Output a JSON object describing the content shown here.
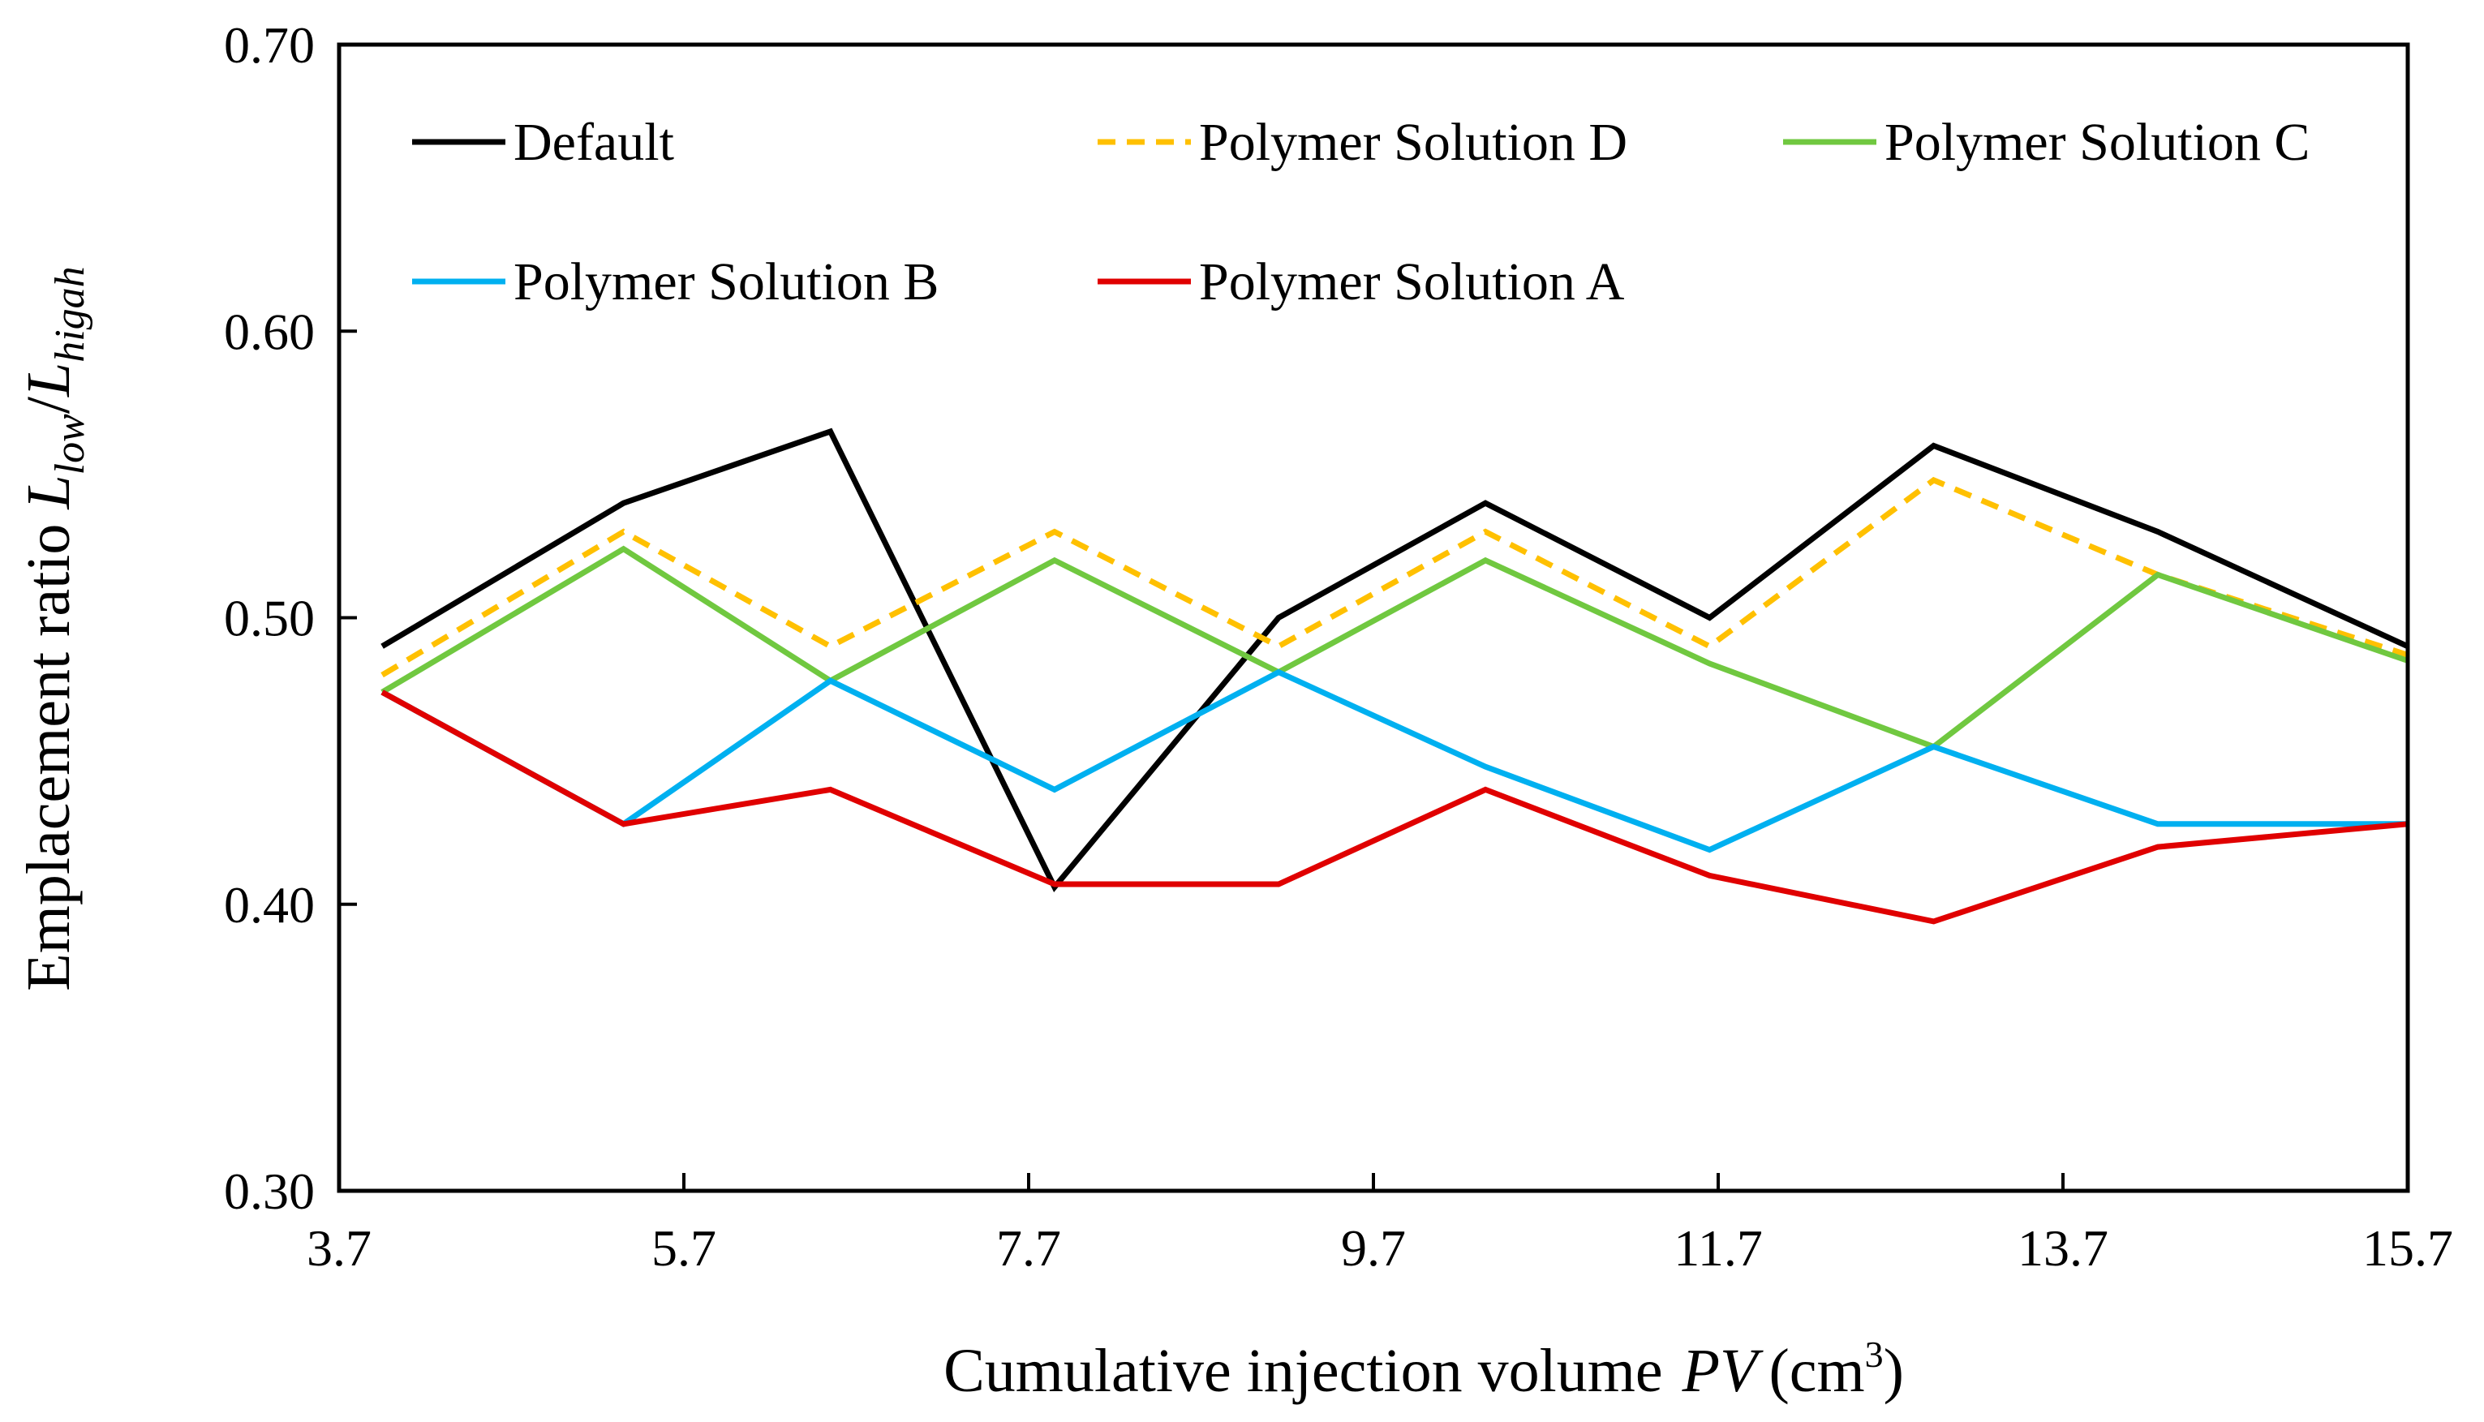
{
  "chart_data": {
    "type": "line",
    "title": "",
    "xlabel": {
      "prefix": "Cumulative injection volume",
      "variable": "PV",
      "unit_open": "(cm",
      "unit_sup": "3",
      "unit_close": ")"
    },
    "ylabel": {
      "prefix": "Emplacement ratio",
      "l1": "L",
      "l1_sub": "low",
      "slash": "/",
      "l2": "L",
      "l2_sub": "higah"
    },
    "xlim": [
      3.7,
      15.7
    ],
    "ylim": [
      0.3,
      0.7
    ],
    "x_ticks": [
      "3.7",
      "5.7",
      "7.7",
      "9.7",
      "11.7",
      "13.7",
      "15.7"
    ],
    "y_ticks": [
      "0.30",
      "0.40",
      "0.50",
      "0.60",
      "0.70"
    ],
    "x": [
      3.95,
      5.35,
      6.55,
      7.85,
      9.15,
      10.35,
      11.65,
      12.95,
      14.25,
      15.7
    ],
    "series": [
      {
        "name": "Default",
        "color": "#000000",
        "dash": "solid",
        "values": [
          0.49,
          0.54,
          0.565,
          0.406,
          0.5,
          0.54,
          0.5,
          0.56,
          0.53,
          0.49
        ]
      },
      {
        "name": "Polymer Solution D",
        "color": "#FFC000",
        "dash": "dashed",
        "values": [
          0.48,
          0.53,
          0.49,
          0.53,
          0.49,
          0.53,
          0.49,
          0.548,
          0.515,
          0.487
        ]
      },
      {
        "name": "Polymer Solution C",
        "color": "#70C840",
        "dash": "solid",
        "values": [
          0.474,
          0.524,
          0.478,
          0.52,
          0.481,
          0.52,
          0.484,
          0.455,
          0.515,
          0.485
        ]
      },
      {
        "name": "Polymer Solution B",
        "color": "#00B0F0",
        "dash": "solid",
        "values": [
          0.474,
          0.428,
          0.478,
          0.44,
          0.481,
          0.448,
          0.419,
          0.455,
          0.428,
          0.428
        ]
      },
      {
        "name": "Polymer Solution A",
        "color": "#E00000",
        "dash": "solid",
        "values": [
          0.474,
          0.428,
          0.44,
          0.407,
          0.407,
          0.44,
          0.41,
          0.394,
          0.42,
          0.428
        ]
      }
    ],
    "legend_position": "top, inside plot"
  }
}
